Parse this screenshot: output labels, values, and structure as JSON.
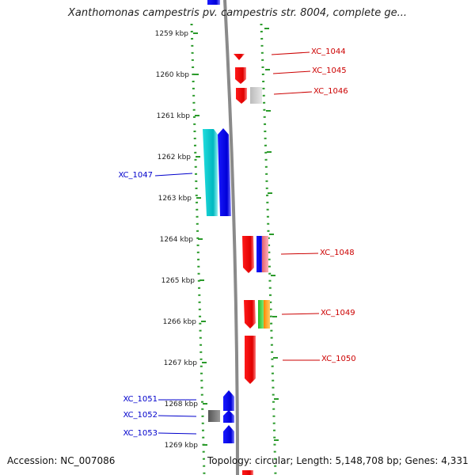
{
  "title": "Xanthomonas campestris pv. campestris str. 8004, complete ge...",
  "footer": {
    "accession": "Accession: NC_007086",
    "topology": "Topology: circular; Length: 5,148,708 bp; Genes: 4,331"
  },
  "colors": {
    "forward_label": "#0000cc",
    "reverse_label": "#cc0000",
    "ruler": "#2a9a2a",
    "backbone": "#888888"
  },
  "ruler_labels": [
    "1259 kbp",
    "1260 kbp",
    "1261 kbp",
    "1262 kbp",
    "1263 kbp",
    "1264 kbp",
    "1265 kbp",
    "1266 kbp",
    "1267 kbp",
    "1268 kbp",
    "1269 kbp"
  ],
  "genes": [
    {
      "label": "XC_1044",
      "strand": "reverse"
    },
    {
      "label": "XC_1045",
      "strand": "reverse"
    },
    {
      "label": "XC_1046",
      "strand": "reverse"
    },
    {
      "label": "XC_1047",
      "strand": "forward"
    },
    {
      "label": "XC_1048",
      "strand": "reverse"
    },
    {
      "label": "XC_1049",
      "strand": "reverse"
    },
    {
      "label": "XC_1050",
      "strand": "reverse"
    },
    {
      "label": "XC_1051",
      "strand": "forward"
    },
    {
      "label": "XC_1052",
      "strand": "forward"
    },
    {
      "label": "XC_1053",
      "strand": "forward"
    }
  ]
}
